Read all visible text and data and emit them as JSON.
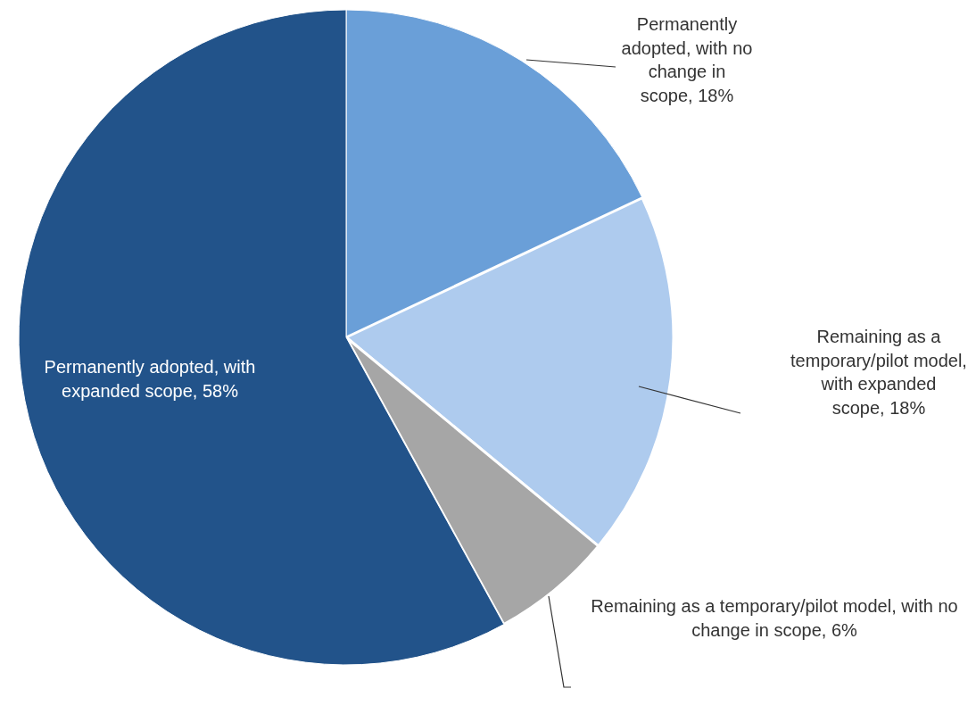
{
  "chart_data": {
    "type": "pie",
    "categories": [
      "Permanently adopted, with no change in scope",
      "Remaining as a temporary/pilot model, with expanded scope",
      "Remaining as a temporary/pilot model, with no change in scope",
      "Permanently adopted, with expanded scope"
    ],
    "values": [
      18,
      18,
      6,
      58
    ],
    "value_labels": [
      "18%",
      "18%",
      "6%",
      "58%"
    ],
    "colors": [
      "#6a9fd8",
      "#aecbee",
      "#a6a6a6",
      "#22538a"
    ]
  }
}
